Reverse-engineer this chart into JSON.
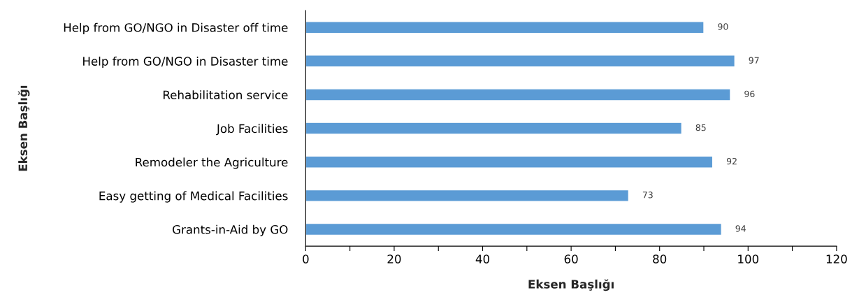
{
  "chart_data": {
    "type": "bar",
    "orientation": "horizontal",
    "xlabel": "Eksen Başlığı",
    "ylabel": "Eksen Başlığı",
    "categories": [
      "Help from GO/NGO in Disaster off time",
      "Help from GO/NGO in Disaster time",
      "Rehabilitation service",
      "Job Facilities",
      "Remodeler the Agriculture",
      "Easy getting of Medical Facilities",
      "Grants-in-Aid by GO"
    ],
    "values": [
      90,
      97,
      96,
      85,
      92,
      73,
      94
    ],
    "color": "#5b9bd5",
    "data_labels": true,
    "grid": false,
    "legend": false,
    "xlim": [
      0,
      120
    ],
    "xticks": [
      0,
      {
        "value": 10,
        "label": null
      },
      20,
      {
        "value": 30,
        "label": null
      },
      40,
      {
        "value": 50,
        "label": null
      },
      60,
      {
        "value": 70,
        "label": null
      },
      80,
      {
        "value": 90,
        "label": null
      },
      100,
      {
        "value": 110,
        "label": null
      },
      120
    ]
  }
}
